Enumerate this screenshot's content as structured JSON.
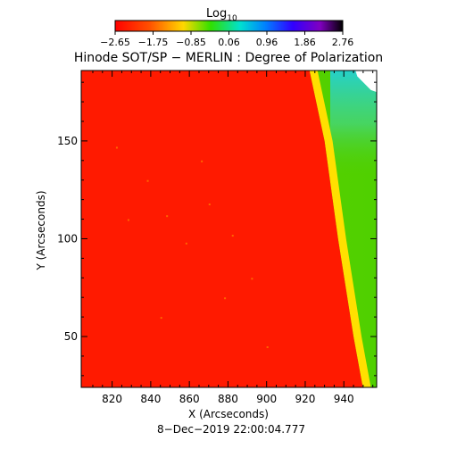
{
  "colorbar": {
    "label_main": "Log",
    "label_sub": "10",
    "tick_labels": [
      "−2.65",
      "−1.75",
      "−0.85",
      "0.06",
      "0.96",
      "1.86",
      "2.76"
    ],
    "range": [
      -2.65,
      2.76
    ],
    "colormap": "rainbow (red → yellow → green → cyan → blue → violet → black)"
  },
  "title": "Hinode SOT/SP − MERLIN : Degree of Polarization",
  "footer": "8−Dec−2019 22:00:04.777",
  "colors": {
    "disk": "#ff1a00",
    "limb_bright": "#ffe000",
    "limb_yellow": "#f0f000",
    "off_limb_green": "#5ad000",
    "off_limb_cyan": "#30e0c0",
    "off_limb_blue": "#3090ff",
    "saturated": "#ffffff"
  },
  "chart_data": {
    "type": "heatmap",
    "title": "Hinode SOT/SP − MERLIN : Degree of Polarization",
    "xlabel": "X (Arcseconds)",
    "ylabel": "Y (Arcseconds)",
    "xlim": [
      804,
      957
    ],
    "ylim": [
      24,
      186
    ],
    "x_ticks": [
      820,
      840,
      860,
      880,
      900,
      920,
      940
    ],
    "y_ticks": [
      50,
      100,
      150
    ],
    "grid": false,
    "limb_x_at_y": [
      [
        186,
        922
      ],
      [
        150,
        930
      ],
      [
        100,
        937
      ],
      [
        50,
        945
      ],
      [
        24,
        950
      ]
    ],
    "values_note": "disk ~ -2.65 (red); off-limb 0.06 to 1.86 (green to cyan)"
  }
}
